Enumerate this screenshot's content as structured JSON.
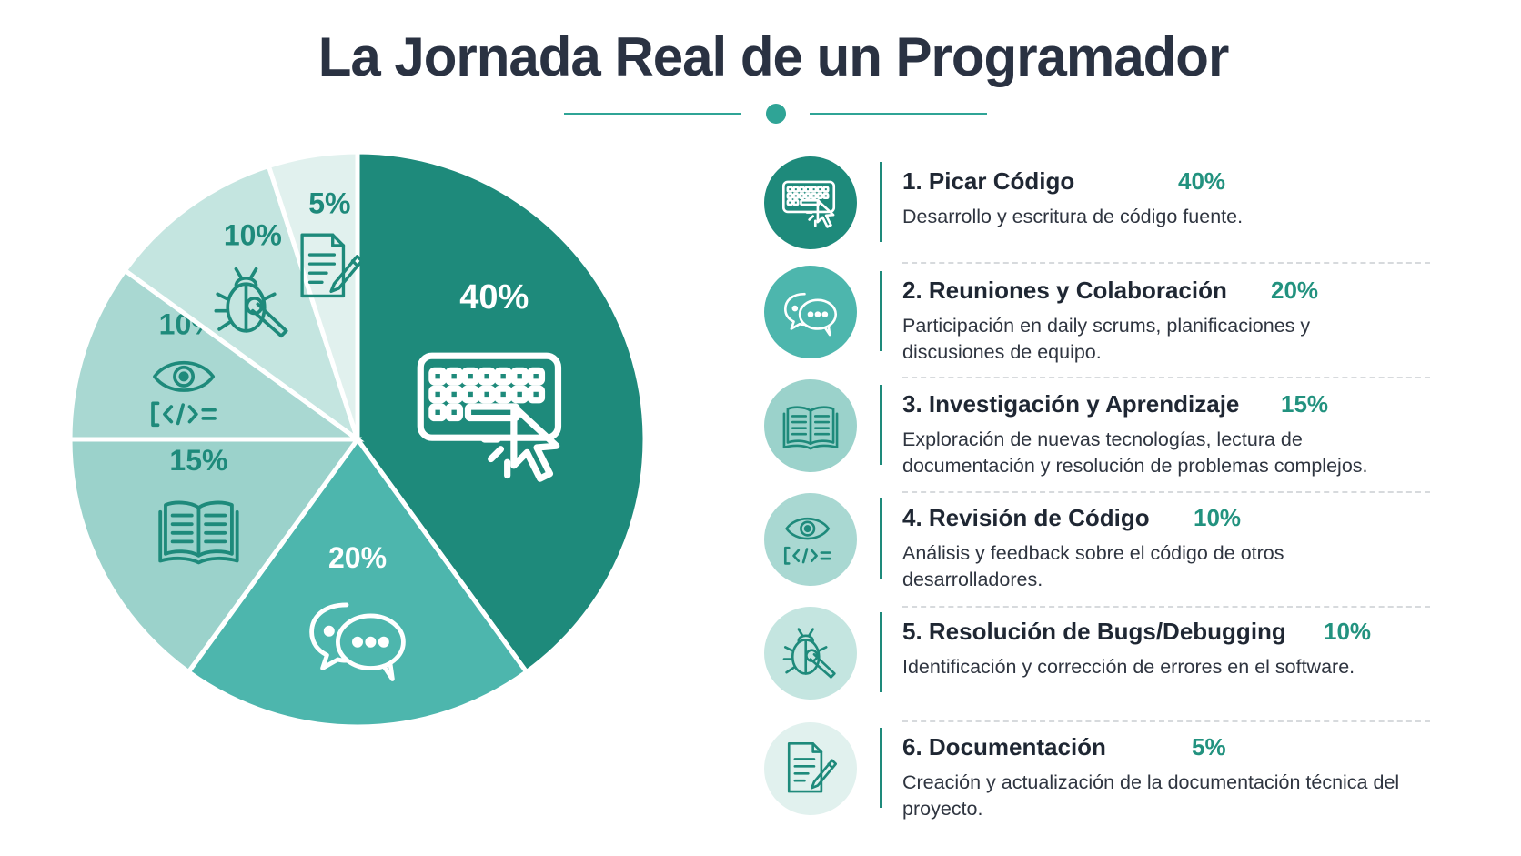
{
  "title": "La Jornada Real de un Programador",
  "colors": {
    "slice_coding": "#1e8a7b",
    "slice_meetings": "#4db6ad",
    "slice_research": "#9bd2cb",
    "slice_review": "#a9d8d2",
    "slice_bugs": "#c4e5e0",
    "slice_docs": "#e1f1ee",
    "accent": "#22927f",
    "dark_text": "#1f2733"
  },
  "chart_data": {
    "type": "pie",
    "title": "La Jornada Real de un Programador",
    "categories": [
      "Picar Código",
      "Reuniones y Colaboración",
      "Investigación y Aprendizaje",
      "Revisión de Código",
      "Resolución de Bugs/Debugging",
      "Documentación"
    ],
    "values": [
      40,
      20,
      15,
      10,
      10,
      5
    ],
    "labels": [
      "40%",
      "20%",
      "15%",
      "10%",
      "10%",
      "5%"
    ],
    "icons": [
      "keyboard-cursor-icon",
      "chat-bubbles-icon",
      "open-book-icon",
      "eye-code-icon",
      "bug-wrench-icon",
      "document-pencil-icon"
    ]
  },
  "legend": [
    {
      "name": "1. Picar Código",
      "pct": "40%",
      "desc": "Desarrollo y escritura de código fuente.",
      "icon": "keyboard-cursor-icon"
    },
    {
      "name": "2. Reuniones y Colaboración",
      "pct": "20%",
      "desc": "Participación en daily scrums, planificaciones y discusiones de equipo.",
      "icon": "chat-bubbles-icon"
    },
    {
      "name": "3. Investigación y Aprendizaje",
      "pct": "15%",
      "desc": "Exploración de nuevas tecnologías, lectura de documentación y resolución de problemas complejos.",
      "icon": "open-book-icon"
    },
    {
      "name": "4. Revisión de Código",
      "pct": "10%",
      "desc": "Análisis y feedback sobre el código de otros desarrolladores.",
      "icon": "eye-code-icon"
    },
    {
      "name": "5. Resolución de Bugs/Debugging",
      "pct": "10%",
      "desc": "Identificación y corrección de errores en el software.",
      "icon": "bug-wrench-icon"
    },
    {
      "name": "6. Documentación",
      "pct": "5%",
      "desc": "Creación y actualización de la documentación técnica del proyecto.",
      "icon": "document-pencil-icon"
    }
  ]
}
